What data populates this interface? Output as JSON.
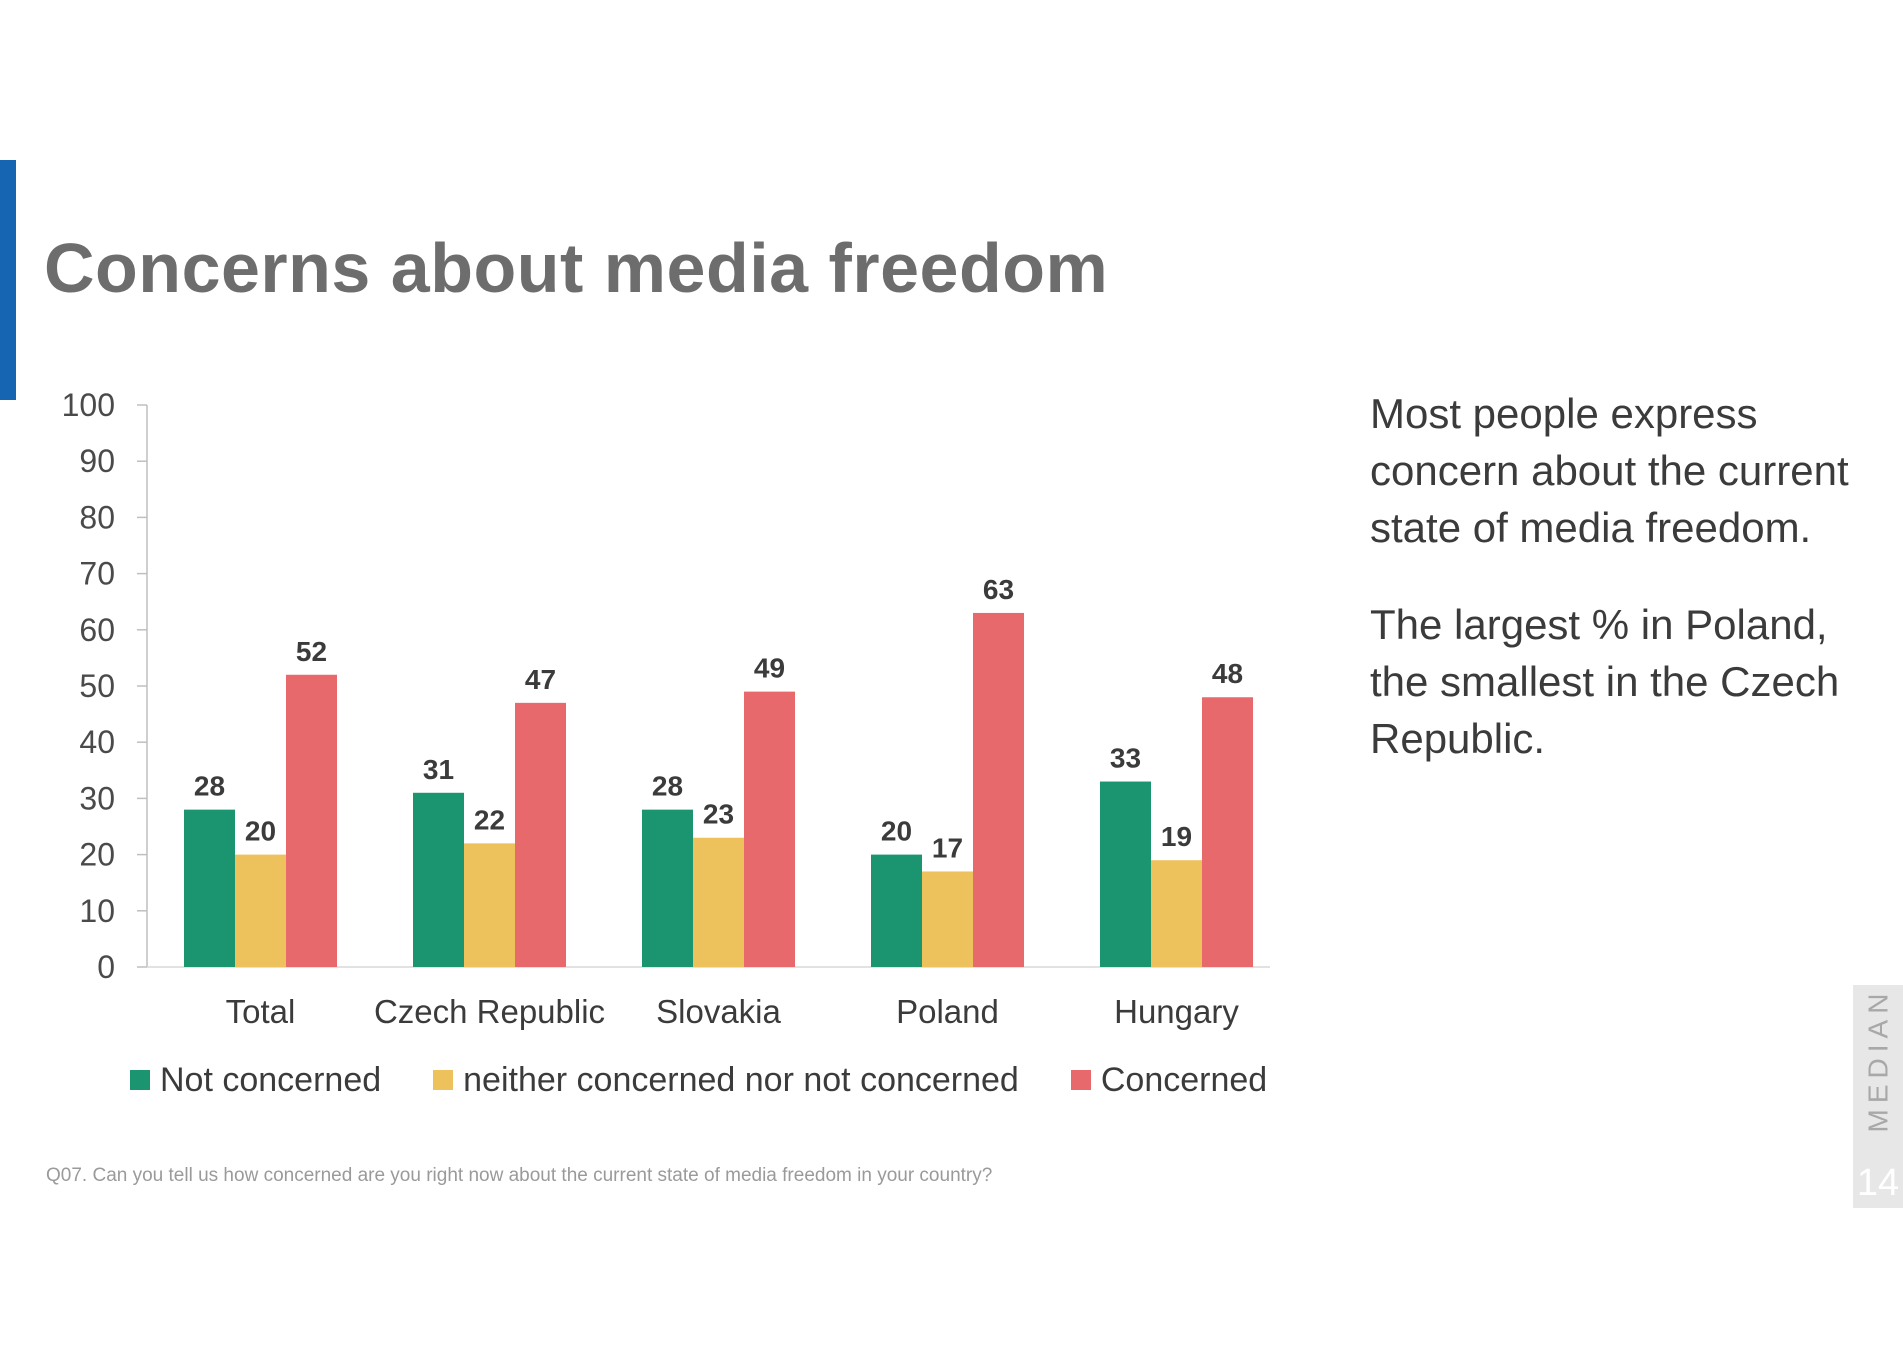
{
  "slide": {
    "title": "Concerns about media freedom",
    "accent_color": "#1565b3",
    "commentary": [
      "Most people express concern about the current state of media freedom.",
      "The largest % in Poland, the smallest in the Czech Republic."
    ],
    "footnote": "Q07. Can you tell us how concerned are you right now about the current state of media freedom in your country?",
    "brand": "MEDIAN",
    "page_number": "14"
  },
  "chart_data": {
    "type": "bar",
    "categories": [
      "Total",
      "Czech Republic",
      "Slovakia",
      "Poland",
      "Hungary"
    ],
    "series": [
      {
        "name": "Not concerned",
        "color": "#1b9470",
        "values": [
          28,
          31,
          28,
          20,
          33
        ]
      },
      {
        "name": "neither concerned nor not concerned",
        "color": "#edc15b",
        "values": [
          20,
          22,
          23,
          17,
          19
        ]
      },
      {
        "name": "Concerned",
        "color": "#e8696b",
        "values": [
          52,
          47,
          49,
          63,
          48
        ]
      }
    ],
    "ylim": [
      0,
      100
    ],
    "yticks": [
      "0",
      "10",
      "20",
      "30",
      "40",
      "50",
      "60",
      "70",
      "80",
      "90",
      "100"
    ],
    "title": "",
    "xlabel": "",
    "ylabel": "",
    "grid": false,
    "legend_position": "bottom",
    "data_labels": true
  }
}
